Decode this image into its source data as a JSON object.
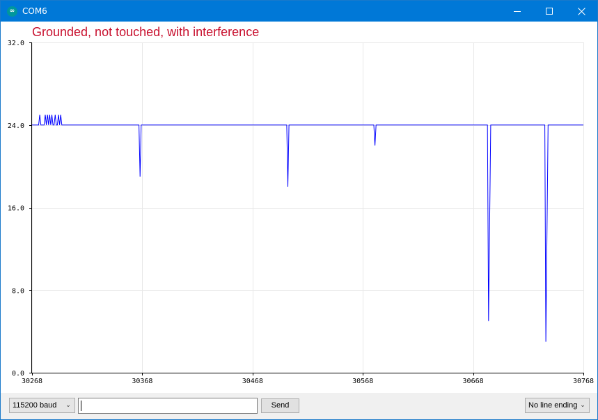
{
  "window": {
    "title": "COM6",
    "icon": "arduino-infinity-icon",
    "icon_glyph": "∞",
    "accent_color": "#0078d7"
  },
  "annotation": {
    "text": "Grounded, not touched, with interference",
    "color": "#c8102e"
  },
  "chart_data": {
    "type": "line",
    "title": "",
    "xlabel": "",
    "ylabel": "",
    "xlim": [
      30268,
      30768
    ],
    "ylim": [
      0,
      32
    ],
    "x_ticks": [
      "30268",
      "30368",
      "30468",
      "30568",
      "30668",
      "30768"
    ],
    "y_ticks": [
      "0.0",
      "8.0",
      "16.0",
      "24.0",
      "32.0"
    ],
    "grid": true,
    "series": [
      {
        "color": "#0000ff",
        "points": [
          [
            30268,
            24
          ],
          [
            30274,
            24
          ],
          [
            30275,
            25
          ],
          [
            30276,
            24
          ],
          [
            30279,
            24
          ],
          [
            30280,
            25
          ],
          [
            30281,
            24
          ],
          [
            30282,
            25
          ],
          [
            30283,
            24
          ],
          [
            30284,
            25
          ],
          [
            30285,
            24
          ],
          [
            30286,
            25
          ],
          [
            30287,
            24
          ],
          [
            30288,
            24
          ],
          [
            30289,
            25
          ],
          [
            30290,
            24
          ],
          [
            30291,
            24
          ],
          [
            30292,
            25
          ],
          [
            30293,
            24
          ],
          [
            30294,
            25
          ],
          [
            30295,
            24
          ],
          [
            30365,
            24
          ],
          [
            30366,
            19
          ],
          [
            30367,
            24
          ],
          [
            30499,
            24
          ],
          [
            30500,
            18
          ],
          [
            30501,
            24
          ],
          [
            30578,
            24
          ],
          [
            30579,
            22
          ],
          [
            30580,
            24
          ],
          [
            30681,
            24
          ],
          [
            30682,
            5
          ],
          [
            30684,
            24
          ],
          [
            30733,
            24
          ],
          [
            30734,
            3
          ],
          [
            30736,
            24
          ],
          [
            30768,
            24
          ]
        ]
      }
    ]
  },
  "bottom_bar": {
    "baud_select": {
      "value": "115200 baud",
      "icon": "chevron-down-icon"
    },
    "message_input": {
      "value": "",
      "placeholder": ""
    },
    "send_label": "Send",
    "line_ending_select": {
      "value": "No line ending",
      "icon": "chevron-down-icon"
    }
  }
}
